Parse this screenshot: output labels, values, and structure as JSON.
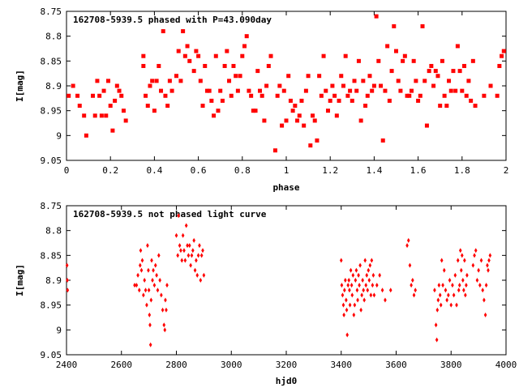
{
  "chart_data": [
    {
      "type": "scatter",
      "title": "162708-5939.5 phased with P=43.090day",
      "xlabel": "phase",
      "ylabel": "I[mag]",
      "xlim": [
        0,
        2
      ],
      "ylim": [
        9.05,
        8.75
      ],
      "y_inverted": true,
      "xticks": [
        0,
        0.2,
        0.4,
        0.6,
        0.8,
        1,
        1.2,
        1.4,
        1.6,
        1.8,
        2
      ],
      "xtick_labels": [
        "0",
        "0.2",
        "0.4",
        "0.6",
        "0.8",
        "1",
        "1.2",
        "1.4",
        "1.6",
        "1.8",
        "2"
      ],
      "yticks": [
        8.75,
        8.8,
        8.85,
        8.9,
        8.95,
        9,
        9.05
      ],
      "ytick_labels": [
        "8.75",
        "8.8",
        "8.85",
        "8.9",
        "8.95",
        "9",
        "9.05"
      ],
      "grid": false,
      "marker_color": "#ff0000",
      "marker": "filled-square",
      "points": [
        [
          0.01,
          8.92
        ],
        [
          0.03,
          8.9
        ],
        [
          0.05,
          8.92
        ],
        [
          0.06,
          8.94
        ],
        [
          0.08,
          8.96
        ],
        [
          0.09,
          9.0
        ],
        [
          0.12,
          8.92
        ],
        [
          0.13,
          8.96
        ],
        [
          0.14,
          8.89
        ],
        [
          0.15,
          8.92
        ],
        [
          0.16,
          8.96
        ],
        [
          0.17,
          8.91
        ],
        [
          0.18,
          8.96
        ],
        [
          0.19,
          8.89
        ],
        [
          0.2,
          8.94
        ],
        [
          0.21,
          8.99
        ],
        [
          0.22,
          8.93
        ],
        [
          0.23,
          8.9
        ],
        [
          0.24,
          8.91
        ],
        [
          0.25,
          8.92
        ],
        [
          0.26,
          8.95
        ],
        [
          0.27,
          8.97
        ],
        [
          0.35,
          8.84
        ],
        [
          0.35,
          8.86
        ],
        [
          0.36,
          8.92
        ],
        [
          0.37,
          8.94
        ],
        [
          0.38,
          8.9
        ],
        [
          0.39,
          8.89
        ],
        [
          0.4,
          8.95
        ],
        [
          0.41,
          8.89
        ],
        [
          0.42,
          8.86
        ],
        [
          0.43,
          8.91
        ],
        [
          0.44,
          8.79
        ],
        [
          0.45,
          8.92
        ],
        [
          0.46,
          8.94
        ],
        [
          0.47,
          8.89
        ],
        [
          0.48,
          8.91
        ],
        [
          0.5,
          8.88
        ],
        [
          0.51,
          8.83
        ],
        [
          0.52,
          8.89
        ],
        [
          0.53,
          8.79
        ],
        [
          0.54,
          8.84
        ],
        [
          0.55,
          8.82
        ],
        [
          0.56,
          8.85
        ],
        [
          0.58,
          8.87
        ],
        [
          0.59,
          8.83
        ],
        [
          0.6,
          8.84
        ],
        [
          0.61,
          8.89
        ],
        [
          0.62,
          8.94
        ],
        [
          0.63,
          8.86
        ],
        [
          0.64,
          8.91
        ],
        [
          0.65,
          8.91
        ],
        [
          0.66,
          8.93
        ],
        [
          0.67,
          8.96
        ],
        [
          0.68,
          8.84
        ],
        [
          0.69,
          8.95
        ],
        [
          0.7,
          8.91
        ],
        [
          0.71,
          8.93
        ],
        [
          0.72,
          8.86
        ],
        [
          0.73,
          8.83
        ],
        [
          0.74,
          8.89
        ],
        [
          0.75,
          8.92
        ],
        [
          0.76,
          8.86
        ],
        [
          0.77,
          8.88
        ],
        [
          0.78,
          8.91
        ],
        [
          0.79,
          8.88
        ],
        [
          0.8,
          8.84
        ],
        [
          0.81,
          8.82
        ],
        [
          0.82,
          8.8
        ],
        [
          0.83,
          8.91
        ],
        [
          0.84,
          8.92
        ],
        [
          0.85,
          8.95
        ],
        [
          0.86,
          8.95
        ],
        [
          0.87,
          8.87
        ],
        [
          0.88,
          8.91
        ],
        [
          0.89,
          8.92
        ],
        [
          0.9,
          8.97
        ],
        [
          0.91,
          8.9
        ],
        [
          0.92,
          8.86
        ],
        [
          0.93,
          8.84
        ],
        [
          0.95,
          9.03
        ],
        [
          0.96,
          8.92
        ],
        [
          0.97,
          8.9
        ],
        [
          0.98,
          8.98
        ],
        [
          0.99,
          8.91
        ],
        [
          1.0,
          8.97
        ],
        [
          1.01,
          8.88
        ],
        [
          1.02,
          8.93
        ],
        [
          1.03,
          8.95
        ],
        [
          1.04,
          8.94
        ],
        [
          1.05,
          8.97
        ],
        [
          1.06,
          8.96
        ],
        [
          1.07,
          8.93
        ],
        [
          1.08,
          8.98
        ],
        [
          1.09,
          8.91
        ],
        [
          1.1,
          8.88
        ],
        [
          1.11,
          9.02
        ],
        [
          1.12,
          8.96
        ],
        [
          1.13,
          8.97
        ],
        [
          1.14,
          9.01
        ],
        [
          1.15,
          8.88
        ],
        [
          1.16,
          8.92
        ],
        [
          1.17,
          8.84
        ],
        [
          1.18,
          8.91
        ],
        [
          1.19,
          8.95
        ],
        [
          1.2,
          8.93
        ],
        [
          1.21,
          8.9
        ],
        [
          1.22,
          8.92
        ],
        [
          1.23,
          8.96
        ],
        [
          1.24,
          8.93
        ],
        [
          1.25,
          8.88
        ],
        [
          1.26,
          8.9
        ],
        [
          1.27,
          8.84
        ],
        [
          1.28,
          8.92
        ],
        [
          1.29,
          8.91
        ],
        [
          1.3,
          8.93
        ],
        [
          1.31,
          8.89
        ],
        [
          1.32,
          8.91
        ],
        [
          1.33,
          8.85
        ],
        [
          1.34,
          8.97
        ],
        [
          1.35,
          8.89
        ],
        [
          1.36,
          8.94
        ],
        [
          1.37,
          8.92
        ],
        [
          1.38,
          8.88
        ],
        [
          1.39,
          8.91
        ],
        [
          1.4,
          8.9
        ],
        [
          1.41,
          8.76
        ],
        [
          1.42,
          8.85
        ],
        [
          1.43,
          8.9
        ],
        [
          1.44,
          9.01
        ],
        [
          1.45,
          8.91
        ],
        [
          1.46,
          8.82
        ],
        [
          1.47,
          8.93
        ],
        [
          1.48,
          8.87
        ],
        [
          1.49,
          8.78
        ],
        [
          1.5,
          8.83
        ],
        [
          1.51,
          8.89
        ],
        [
          1.52,
          8.91
        ],
        [
          1.53,
          8.85
        ],
        [
          1.54,
          8.84
        ],
        [
          1.55,
          8.92
        ],
        [
          1.56,
          8.92
        ],
        [
          1.57,
          8.91
        ],
        [
          1.58,
          8.85
        ],
        [
          1.59,
          8.89
        ],
        [
          1.6,
          8.93
        ],
        [
          1.61,
          8.92
        ],
        [
          1.62,
          8.78
        ],
        [
          1.63,
          8.89
        ],
        [
          1.64,
          8.98
        ],
        [
          1.65,
          8.87
        ],
        [
          1.66,
          8.86
        ],
        [
          1.67,
          8.9
        ],
        [
          1.68,
          8.87
        ],
        [
          1.69,
          8.88
        ],
        [
          1.7,
          8.94
        ],
        [
          1.71,
          8.85
        ],
        [
          1.72,
          8.92
        ],
        [
          1.73,
          8.94
        ],
        [
          1.74,
          8.89
        ],
        [
          1.75,
          8.91
        ],
        [
          1.76,
          8.87
        ],
        [
          1.77,
          8.91
        ],
        [
          1.78,
          8.82
        ],
        [
          1.79,
          8.87
        ],
        [
          1.8,
          8.91
        ],
        [
          1.81,
          8.86
        ],
        [
          1.82,
          8.92
        ],
        [
          1.83,
          8.89
        ],
        [
          1.84,
          8.93
        ],
        [
          1.85,
          8.85
        ],
        [
          1.86,
          8.94
        ],
        [
          1.9,
          8.92
        ],
        [
          1.93,
          8.9
        ],
        [
          1.96,
          8.92
        ],
        [
          1.97,
          8.86
        ],
        [
          1.98,
          8.84
        ],
        [
          1.99,
          8.83
        ]
      ]
    },
    {
      "type": "scatter",
      "title": "162708-5939.5 not phased light curve",
      "xlabel": "hjd0",
      "ylabel": "I[mag]",
      "xlim": [
        2400,
        4000
      ],
      "ylim": [
        9.05,
        8.75
      ],
      "y_inverted": true,
      "xticks": [
        2400,
        2600,
        2800,
        3000,
        3200,
        3400,
        3600,
        3800,
        4000
      ],
      "xtick_labels": [
        "2400",
        "2600",
        "2800",
        "3000",
        "3200",
        "3400",
        "3600",
        "3800",
        "4000"
      ],
      "yticks": [
        8.75,
        8.8,
        8.85,
        8.9,
        8.95,
        9,
        9.05
      ],
      "ytick_labels": [
        "8.75",
        "8.8",
        "8.85",
        "8.9",
        "8.95",
        "9",
        "9.05"
      ],
      "grid": false,
      "marker_color": "#ff0000",
      "marker": "filled-diamond",
      "points": [
        [
          2402,
          8.87
        ],
        [
          2403,
          8.9
        ],
        [
          2404,
          8.92
        ],
        [
          2648,
          8.91
        ],
        [
          2655,
          8.91
        ],
        [
          2660,
          8.89
        ],
        [
          2665,
          8.92
        ],
        [
          2668,
          8.87
        ],
        [
          2670,
          8.84
        ],
        [
          2673,
          8.88
        ],
        [
          2676,
          8.86
        ],
        [
          2680,
          8.93
        ],
        [
          2684,
          8.9
        ],
        [
          2688,
          8.92
        ],
        [
          2692,
          8.95
        ],
        [
          2695,
          8.83
        ],
        [
          2698,
          8.88
        ],
        [
          2700,
          8.92
        ],
        [
          2702,
          8.97
        ],
        [
          2704,
          8.99
        ],
        [
          2706,
          9.03
        ],
        [
          2708,
          8.94
        ],
        [
          2710,
          8.86
        ],
        [
          2713,
          8.9
        ],
        [
          2716,
          8.88
        ],
        [
          2720,
          8.91
        ],
        [
          2724,
          8.87
        ],
        [
          2728,
          8.89
        ],
        [
          2732,
          8.92
        ],
        [
          2736,
          8.85
        ],
        [
          2740,
          8.9
        ],
        [
          2745,
          8.93
        ],
        [
          2750,
          8.96
        ],
        [
          2755,
          8.99
        ],
        [
          2758,
          9.0
        ],
        [
          2760,
          8.94
        ],
        [
          2763,
          8.96
        ],
        [
          2766,
          8.91
        ],
        [
          2800,
          8.81
        ],
        [
          2805,
          8.85
        ],
        [
          2808,
          8.77
        ],
        [
          2812,
          8.83
        ],
        [
          2816,
          8.84
        ],
        [
          2820,
          8.86
        ],
        [
          2824,
          8.81
        ],
        [
          2828,
          8.84
        ],
        [
          2832,
          8.86
        ],
        [
          2836,
          8.79
        ],
        [
          2840,
          8.83
        ],
        [
          2844,
          8.85
        ],
        [
          2848,
          8.83
        ],
        [
          2852,
          8.87
        ],
        [
          2856,
          8.85
        ],
        [
          2860,
          8.84
        ],
        [
          2864,
          8.82
        ],
        [
          2868,
          8.88
        ],
        [
          2872,
          8.86
        ],
        [
          2876,
          8.89
        ],
        [
          2880,
          8.85
        ],
        [
          2884,
          8.83
        ],
        [
          2888,
          8.9
        ],
        [
          2892,
          8.85
        ],
        [
          2896,
          8.84
        ],
        [
          2900,
          8.89
        ],
        [
          3400,
          8.86
        ],
        [
          3402,
          8.91
        ],
        [
          3405,
          8.93
        ],
        [
          3408,
          8.95
        ],
        [
          3410,
          8.97
        ],
        [
          3412,
          8.92
        ],
        [
          3415,
          8.9
        ],
        [
          3418,
          8.94
        ],
        [
          3420,
          8.96
        ],
        [
          3422,
          9.01
        ],
        [
          3425,
          8.91
        ],
        [
          3428,
          8.9
        ],
        [
          3430,
          8.92
        ],
        [
          3432,
          8.95
        ],
        [
          3435,
          8.88
        ],
        [
          3438,
          8.91
        ],
        [
          3440,
          8.93
        ],
        [
          3443,
          8.89
        ],
        [
          3446,
          8.97
        ],
        [
          3449,
          8.95
        ],
        [
          3452,
          8.9
        ],
        [
          3455,
          8.88
        ],
        [
          3458,
          8.92
        ],
        [
          3460,
          8.94
        ],
        [
          3463,
          8.89
        ],
        [
          3466,
          8.91
        ],
        [
          3469,
          8.87
        ],
        [
          3472,
          8.96
        ],
        [
          3475,
          8.93
        ],
        [
          3478,
          8.9
        ],
        [
          3481,
          8.92
        ],
        [
          3484,
          8.94
        ],
        [
          3487,
          8.86
        ],
        [
          3490,
          8.91
        ],
        [
          3493,
          8.89
        ],
        [
          3496,
          8.92
        ],
        [
          3499,
          8.88
        ],
        [
          3502,
          8.9
        ],
        [
          3505,
          8.87
        ],
        [
          3508,
          8.93
        ],
        [
          3511,
          8.86
        ],
        [
          3514,
          8.91
        ],
        [
          3517,
          8.89
        ],
        [
          3520,
          8.93
        ],
        [
          3530,
          8.91
        ],
        [
          3540,
          8.89
        ],
        [
          3550,
          8.92
        ],
        [
          3560,
          8.94
        ],
        [
          3580,
          8.92
        ],
        [
          3640,
          8.83
        ],
        [
          3645,
          8.82
        ],
        [
          3650,
          8.87
        ],
        [
          3655,
          8.91
        ],
        [
          3660,
          8.9
        ],
        [
          3665,
          8.93
        ],
        [
          3670,
          8.92
        ],
        [
          3740,
          8.92
        ],
        [
          3745,
          8.99
        ],
        [
          3748,
          9.02
        ],
        [
          3750,
          8.96
        ],
        [
          3753,
          8.94
        ],
        [
          3756,
          8.91
        ],
        [
          3760,
          8.93
        ],
        [
          3763,
          8.95
        ],
        [
          3766,
          8.86
        ],
        [
          3770,
          8.91
        ],
        [
          3775,
          8.88
        ],
        [
          3780,
          8.92
        ],
        [
          3785,
          8.94
        ],
        [
          3790,
          8.93
        ],
        [
          3795,
          8.9
        ],
        [
          3800,
          8.95
        ],
        [
          3805,
          8.91
        ],
        [
          3810,
          8.93
        ],
        [
          3815,
          8.89
        ],
        [
          3820,
          8.95
        ],
        [
          3825,
          8.86
        ],
        [
          3828,
          8.92
        ],
        [
          3831,
          8.91
        ],
        [
          3834,
          8.84
        ],
        [
          3837,
          8.88
        ],
        [
          3840,
          8.85
        ],
        [
          3843,
          8.9
        ],
        [
          3846,
          8.92
        ],
        [
          3849,
          8.86
        ],
        [
          3852,
          8.93
        ],
        [
          3855,
          8.91
        ],
        [
          3858,
          8.89
        ],
        [
          3880,
          8.87
        ],
        [
          3885,
          8.85
        ],
        [
          3890,
          8.84
        ],
        [
          3895,
          8.9
        ],
        [
          3900,
          8.88
        ],
        [
          3905,
          8.91
        ],
        [
          3910,
          8.86
        ],
        [
          3915,
          8.92
        ],
        [
          3920,
          8.94
        ],
        [
          3925,
          8.97
        ],
        [
          3928,
          8.91
        ],
        [
          3932,
          8.87
        ],
        [
          3935,
          8.88
        ],
        [
          3938,
          8.86
        ],
        [
          3942,
          8.85
        ]
      ]
    }
  ]
}
